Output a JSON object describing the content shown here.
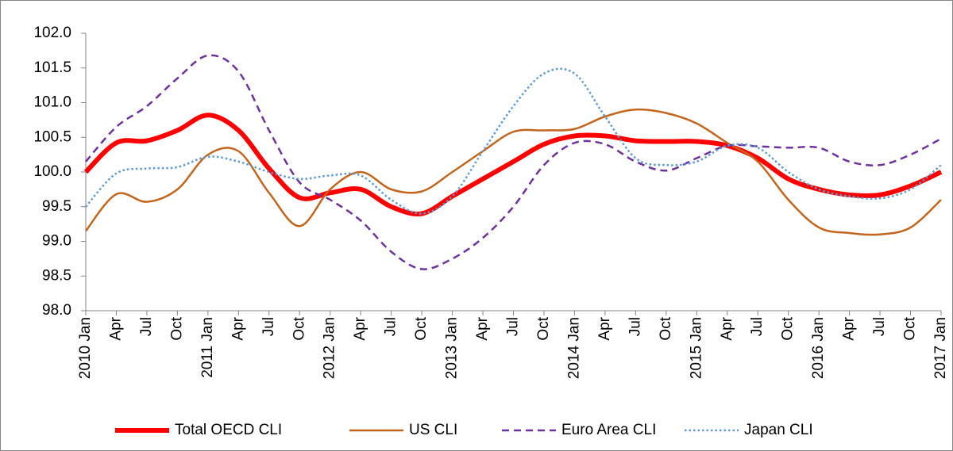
{
  "chart_data": {
    "type": "line",
    "categories": [
      "2010 Jan",
      "Apr",
      "Jul",
      "Oct",
      "2011 Jan",
      "Apr",
      "Jul",
      "Oct",
      "2012 Jan",
      "Apr",
      "Jul",
      "Oct",
      "2013 Jan",
      "Apr",
      "Jul",
      "Oct",
      "2014 Jan",
      "Apr",
      "Jul",
      "Oct",
      "2015 Jan",
      "Apr",
      "Jul",
      "Oct",
      "2016 Jan",
      "Apr",
      "Jul",
      "Oct",
      "2017 Jan"
    ],
    "series": [
      {
        "name": "Total OECD CLI",
        "color": "#ff0000",
        "width": 6,
        "dash": "solid",
        "values": [
          100.0,
          100.42,
          100.45,
          100.6,
          100.82,
          100.6,
          100.05,
          99.63,
          99.7,
          99.75,
          99.5,
          99.4,
          99.65,
          99.9,
          100.15,
          100.4,
          100.52,
          100.52,
          100.45,
          100.44,
          100.44,
          100.38,
          100.2,
          99.9,
          99.75,
          99.67,
          99.67,
          99.8,
          100.0
        ]
      },
      {
        "name": "US CLI",
        "color": "#c5651c",
        "width": 2.5,
        "dash": "solid",
        "values": [
          99.15,
          99.68,
          99.57,
          99.75,
          100.25,
          100.3,
          99.7,
          99.22,
          99.75,
          100.0,
          99.75,
          99.72,
          100.0,
          100.3,
          100.58,
          100.6,
          100.62,
          100.8,
          100.9,
          100.85,
          100.7,
          100.42,
          100.15,
          99.6,
          99.2,
          99.12,
          99.1,
          99.2,
          99.6
        ]
      },
      {
        "name": "Euro Area CLI",
        "color": "#7030a0",
        "width": 2.5,
        "dash": "dashed",
        "values": [
          100.15,
          100.65,
          100.95,
          101.35,
          101.68,
          101.45,
          100.6,
          99.85,
          99.6,
          99.3,
          98.85,
          98.6,
          98.75,
          99.05,
          99.5,
          100.1,
          100.42,
          100.4,
          100.15,
          100.02,
          100.2,
          100.38,
          100.37,
          100.35,
          100.35,
          100.15,
          100.1,
          100.25,
          100.48
        ]
      },
      {
        "name": "Japan CLI",
        "color": "#5b9bd5",
        "width": 2.5,
        "dash": "dotted",
        "values": [
          99.5,
          99.98,
          100.05,
          100.07,
          100.22,
          100.15,
          100.0,
          99.9,
          99.95,
          99.95,
          99.6,
          99.4,
          99.65,
          100.3,
          100.95,
          101.42,
          101.42,
          100.8,
          100.2,
          100.1,
          100.15,
          100.38,
          100.35,
          100.0,
          99.75,
          99.65,
          99.62,
          99.75,
          100.1
        ]
      }
    ],
    "ylim": [
      98.0,
      102.0
    ],
    "yticks": [
      {
        "value": 98.0,
        "label": "98.0"
      },
      98.5,
      {
        "value": 99.0,
        "label": "99.0"
      },
      99.5,
      {
        "value": 100.0,
        "label": "100.0"
      },
      100.5,
      {
        "value": 101.0,
        "label": "101.0"
      },
      101.5,
      {
        "value": 102.0,
        "label": "102.0"
      }
    ],
    "grid": false,
    "legend": "bottom"
  }
}
